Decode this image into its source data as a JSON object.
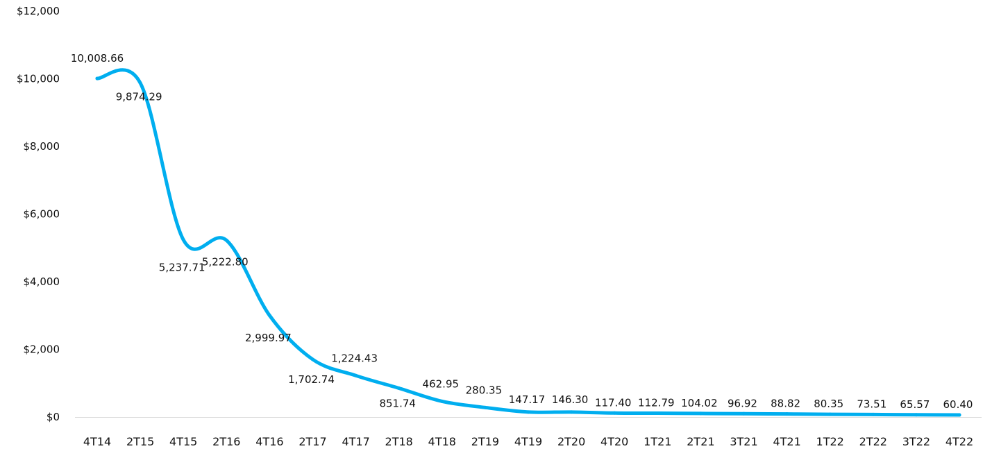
{
  "chart_data": {
    "type": "line",
    "title": "",
    "xlabel": "",
    "ylabel": "",
    "categories": [
      "4T14",
      "2T15",
      "4T15",
      "2T16",
      "4T16",
      "2T17",
      "4T17",
      "2T18",
      "4T18",
      "2T19",
      "4T19",
      "2T20",
      "4T20",
      "1T21",
      "2T21",
      "3T21",
      "4T21",
      "1T22",
      "2T22",
      "3T22",
      "4T22"
    ],
    "values": [
      10008.66,
      9874.29,
      5237.71,
      5222.8,
      2999.97,
      1702.74,
      1224.43,
      851.74,
      462.95,
      280.35,
      147.17,
      146.3,
      117.4,
      112.79,
      104.02,
      96.92,
      88.82,
      80.35,
      73.51,
      65.57,
      60.4
    ],
    "data_labels": [
      "10,008.66",
      "9,874.29",
      "5,237.71",
      "5,222.80",
      "2,999.97",
      "1,702.74",
      "1,224.43",
      "851.74",
      "462.95",
      "280.35",
      "147.17",
      "146.30",
      "117.40",
      "112.79",
      "104.02",
      "96.92",
      "88.82",
      "80.35",
      "73.51",
      "65.57",
      "60.40"
    ],
    "ylim": [
      0,
      12000
    ],
    "yticks": [
      0,
      2000,
      4000,
      6000,
      8000,
      10000,
      12000
    ],
    "ytick_labels": [
      "$0",
      "$2,000",
      "$4,000",
      "$6,000",
      "$8,000",
      "$10,000",
      "$12,000"
    ],
    "grid": false,
    "legend": "none",
    "colors": {
      "line": "#00AEEF",
      "axis": "#D9D9D9",
      "text": "#111111"
    }
  }
}
